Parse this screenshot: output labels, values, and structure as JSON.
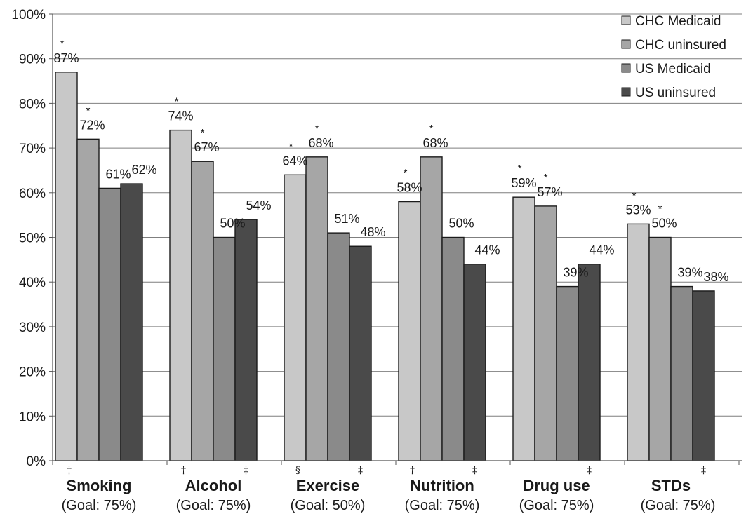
{
  "chart_data": {
    "type": "bar",
    "categories": [
      "Smoking",
      "Alcohol",
      "Exercise",
      "Nutrition",
      "Drug use",
      "STDs"
    ],
    "category_goals": [
      "(Goal: 75%)",
      "(Goal: 75%)",
      "(Goal: 50%)",
      "(Goal: 75%)",
      "(Goal: 75%)",
      "(Goal: 75%)"
    ],
    "series": [
      {
        "name": "CHC Medicaid",
        "values": [
          87,
          74,
          64,
          58,
          59,
          53
        ],
        "color": "#c8c8c8"
      },
      {
        "name": "CHC uninsured",
        "values": [
          72,
          67,
          68,
          68,
          57,
          50
        ],
        "color": "#a6a6a6"
      },
      {
        "name": "US Medicaid",
        "values": [
          61,
          50,
          51,
          50,
          39,
          39
        ],
        "color": "#8a8a8a"
      },
      {
        "name": "US uninsured",
        "values": [
          62,
          54,
          48,
          44,
          44,
          38
        ],
        "color": "#4a4a4a"
      }
    ],
    "data_labels": [
      [
        "87%",
        "72%",
        "61%",
        "62%"
      ],
      [
        "74%",
        "67%",
        "50%",
        "54%"
      ],
      [
        "64%",
        "68%",
        "51%",
        "48%"
      ],
      [
        "58%",
        "68%",
        "50%",
        "44%"
      ],
      [
        "59%",
        "57%",
        "39%",
        "44%"
      ],
      [
        "53%",
        "50%",
        "39%",
        "38%"
      ]
    ],
    "asterisks": [
      [
        true,
        true,
        false,
        false
      ],
      [
        true,
        true,
        false,
        false
      ],
      [
        true,
        true,
        false,
        false
      ],
      [
        true,
        true,
        false,
        false
      ],
      [
        true,
        true,
        false,
        false
      ],
      [
        true,
        true,
        false,
        false
      ]
    ],
    "footnote_marks": [
      [
        "†",
        ""
      ],
      [
        "†",
        "‡"
      ],
      [
        "§",
        "‡"
      ],
      [
        "†",
        "‡"
      ],
      [
        "",
        "‡"
      ],
      [
        "",
        "‡"
      ]
    ],
    "y_ticks": [
      "0%",
      "10%",
      "20%",
      "30%",
      "40%",
      "50%",
      "60%",
      "70%",
      "80%",
      "90%",
      "100%"
    ],
    "ylim": [
      0,
      100
    ],
    "grid": true,
    "legend_position": "top-right",
    "title": "",
    "xlabel": "",
    "ylabel": ""
  }
}
